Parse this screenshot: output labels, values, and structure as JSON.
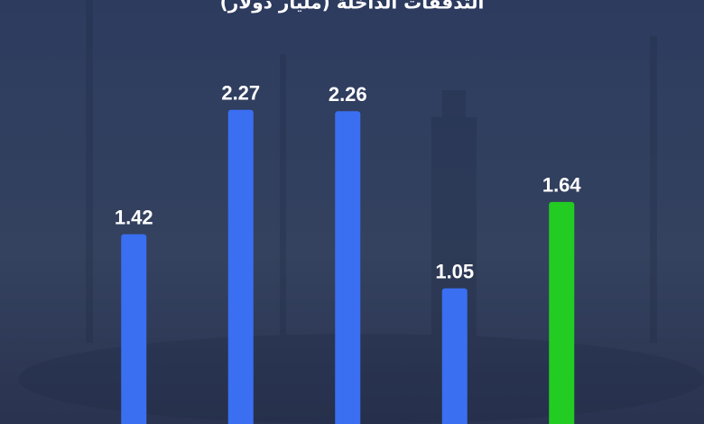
{
  "chart_data": {
    "type": "bar",
    "title": "التدفقات الداخلة (مليار دولار)",
    "values": [
      1.42,
      2.27,
      2.26,
      1.05,
      1.64
    ],
    "colors": [
      "#3a6ff2",
      "#3a6ff2",
      "#3a6ff2",
      "#3a6ff2",
      "#22cc22"
    ],
    "ylim": [
      0,
      3.02
    ]
  }
}
